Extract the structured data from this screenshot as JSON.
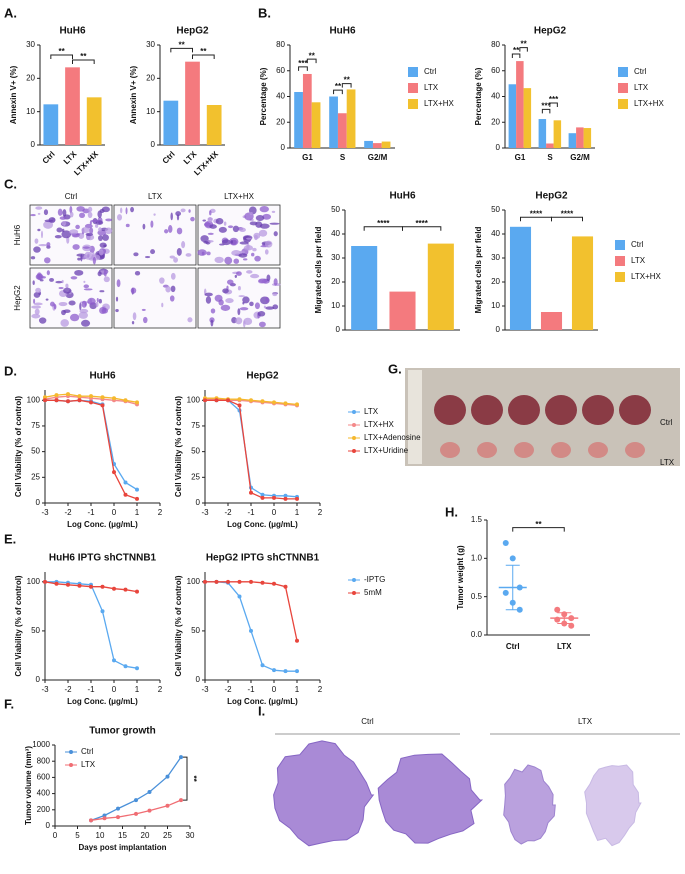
{
  "panel_labels": [
    "A.",
    "B.",
    "C.",
    "D.",
    "E.",
    "F.",
    "G.",
    "H.",
    "I."
  ],
  "images": {
    "C": {
      "columns": [
        "Ctrl",
        "LTX",
        "LTX+HX"
      ],
      "rows": [
        "HuH6",
        "HepG2"
      ]
    },
    "G": {
      "rows": [
        "Ctrl",
        "LTX"
      ]
    },
    "I": {
      "groups": [
        "Ctrl",
        "LTX"
      ]
    }
  },
  "chart_data": [
    {
      "type": "bar",
      "title": "HuH6",
      "ylabel": "Annexin V+ (%)",
      "categories": [
        "Ctrl",
        "LTX",
        "LTX+HX"
      ],
      "values": [
        12.2,
        23.3,
        14.3
      ],
      "colors": [
        "#5aa9f0",
        "#f47a7e",
        "#f2c12e"
      ],
      "ylim": [
        0,
        30
      ],
      "yticks": [
        0,
        10,
        20,
        30
      ],
      "annotations": [
        "**",
        "**"
      ]
    },
    {
      "type": "bar",
      "title": "HepG2",
      "ylabel": "Annexin V+ (%)",
      "categories": [
        "Ctrl",
        "LTX",
        "LTX+HX"
      ],
      "values": [
        13.3,
        25,
        12
      ],
      "colors": [
        "#5aa9f0",
        "#f47a7e",
        "#f2c12e"
      ],
      "ylim": [
        0,
        30
      ],
      "yticks": [
        0,
        10,
        20,
        30
      ],
      "annotations": [
        "**",
        "**"
      ]
    },
    {
      "type": "bar",
      "title": "HuH6",
      "ylabel": "Percentage (%)",
      "categories": [
        "G1",
        "S",
        "G2/M"
      ],
      "series": [
        {
          "name": "Ctrl",
          "color": "#5aa9f0",
          "values": [
            43.5,
            40,
            5.5
          ]
        },
        {
          "name": "LTX",
          "color": "#f47a7e",
          "values": [
            57.5,
            27,
            3.8
          ]
        },
        {
          "name": "LTX+HX",
          "color": "#f2c12e",
          "values": [
            35.5,
            45.5,
            5
          ]
        }
      ],
      "ylim": [
        0,
        80
      ],
      "yticks": [
        0,
        20,
        40,
        60,
        80
      ],
      "legend": "right",
      "annotations": [
        "***",
        "**",
        "**",
        "**"
      ]
    },
    {
      "type": "bar",
      "title": "HepG2",
      "ylabel": "Percentage (%)",
      "categories": [
        "G1",
        "S",
        "G2/M"
      ],
      "series": [
        {
          "name": "Ctrl",
          "color": "#5aa9f0",
          "values": [
            49.5,
            22.5,
            11.5
          ]
        },
        {
          "name": "LTX",
          "color": "#f47a7e",
          "values": [
            67.5,
            3.5,
            16
          ]
        },
        {
          "name": "LTX+HX",
          "color": "#f2c12e",
          "values": [
            46.5,
            21.5,
            15.5
          ]
        }
      ],
      "ylim": [
        0,
        80
      ],
      "yticks": [
        0,
        20,
        40,
        60,
        80
      ],
      "legend": "right",
      "annotations": [
        "**",
        "**",
        "***",
        "***"
      ]
    },
    {
      "type": "bar",
      "title": "HuH6",
      "ylabel": "Migrated cells per field",
      "categories": [
        null,
        null,
        null
      ],
      "values": [
        35,
        16,
        36
      ],
      "colors": [
        "#5aa9f0",
        "#f47a7e",
        "#f2c12e"
      ],
      "ylim": [
        0,
        50
      ],
      "yticks": [
        0,
        10,
        20,
        30,
        40,
        50
      ],
      "annotations": [
        "****",
        "****"
      ]
    },
    {
      "type": "bar",
      "title": "HepG2",
      "ylabel": "Migrated cells per field",
      "categories": [
        "Ctrl",
        "LTX",
        "LTX+HX"
      ],
      "values": [
        43,
        7.5,
        39
      ],
      "colors": [
        "#5aa9f0",
        "#f47a7e",
        "#f2c12e"
      ],
      "ylim": [
        0,
        50
      ],
      "yticks": [
        0,
        10,
        20,
        30,
        40,
        50
      ],
      "legend": "right",
      "annotations": [
        "****",
        "****"
      ]
    },
    {
      "type": "line",
      "title": "HuH6",
      "xlabel": "Log Conc. (μg/mL)",
      "ylabel": "Cell Viability (% of control)",
      "x": [
        -3,
        -2.5,
        -2,
        -1.5,
        -1,
        -0.5,
        0,
        0.5,
        1
      ],
      "series": [
        {
          "name": "LTX",
          "color": "#5aa9f0",
          "values": [
            100,
            100,
            99,
            100,
            99,
            96,
            38,
            20,
            13
          ]
        },
        {
          "name": "LTX+HX",
          "color": "#f4898a",
          "values": [
            101,
            103,
            104,
            103,
            102,
            101,
            100,
            99,
            96
          ]
        },
        {
          "name": "LTX+Adenosine",
          "color": "#f5b82e",
          "values": [
            103,
            105,
            106,
            104,
            104,
            103,
            102,
            100,
            98
          ]
        },
        {
          "name": "LTX+Uridine",
          "color": "#e8453c",
          "values": [
            100,
            100,
            99,
            100,
            98,
            95,
            30,
            8,
            4
          ]
        }
      ],
      "xlim": [
        -3,
        2
      ],
      "xticks": [
        -3,
        -2,
        -1,
        0,
        1,
        2
      ],
      "ylim": [
        0,
        110
      ],
      "yticks": [
        0,
        25,
        50,
        75,
        100
      ]
    },
    {
      "type": "line",
      "title": "HepG2",
      "xlabel": "Log Conc. (μg/mL)",
      "ylabel": "Cell Viability (% of control)",
      "x": [
        -3,
        -2.5,
        -2,
        -1.5,
        -1,
        -0.5,
        0,
        0.5,
        1
      ],
      "series": [
        {
          "name": "LTX",
          "color": "#5aa9f0",
          "values": [
            100,
            100,
            100,
            90,
            15,
            8,
            7,
            7,
            6
          ]
        },
        {
          "name": "LTX+HX",
          "color": "#f4898a",
          "values": [
            101,
            101,
            100,
            100,
            99,
            98,
            97,
            96,
            95
          ]
        },
        {
          "name": "LTX+Adenosine",
          "color": "#f5b82e",
          "values": [
            102,
            102,
            101,
            101,
            100,
            99,
            98,
            97,
            96
          ]
        },
        {
          "name": "LTX+Uridine",
          "color": "#e8453c",
          "values": [
            100,
            100,
            100,
            95,
            10,
            5,
            5,
            4,
            4
          ]
        }
      ],
      "xlim": [
        -3,
        2
      ],
      "xticks": [
        -3,
        -2,
        -1,
        0,
        1,
        2
      ],
      "ylim": [
        0,
        110
      ],
      "yticks": [
        0,
        25,
        50,
        75,
        100
      ],
      "legend": "right"
    },
    {
      "type": "line",
      "title": "HuH6 IPTG shCTNNB1",
      "xlabel": "Log Conc. (μg/mL)",
      "ylabel": "Cell Viability (% of control)",
      "x": [
        -3,
        -2.5,
        -2,
        -1.5,
        -1,
        -0.5,
        0,
        0.5,
        1
      ],
      "series": [
        {
          "name": "-IPTG",
          "color": "#5aa9f0",
          "values": [
            100,
            100,
            99,
            98,
            97,
            70,
            20,
            14,
            12
          ]
        },
        {
          "name": "5mM",
          "color": "#e8453c",
          "values": [
            100,
            98,
            97,
            96,
            95,
            95,
            93,
            92,
            90
          ]
        }
      ],
      "xlim": [
        -3,
        2
      ],
      "xticks": [
        -3,
        -2,
        -1,
        0,
        1,
        2
      ],
      "ylim": [
        0,
        110
      ],
      "yticks": [
        0,
        50,
        100
      ]
    },
    {
      "type": "line",
      "title": "HepG2 IPTG shCTNNB1",
      "xlabel": "Log Conc. (μg/mL)",
      "ylabel": "Cell Viability (% of control)",
      "x": [
        -3,
        -2.5,
        -2,
        -1.5,
        -1,
        -0.5,
        0,
        0.5,
        1
      ],
      "series": [
        {
          "name": "-IPTG",
          "color": "#5aa9f0",
          "values": [
            100,
            100,
            99,
            85,
            50,
            15,
            10,
            9,
            9
          ]
        },
        {
          "name": "5mM",
          "color": "#e8453c",
          "values": [
            100,
            100,
            100,
            100,
            100,
            99,
            98,
            95,
            40
          ]
        }
      ],
      "xlim": [
        -3,
        2
      ],
      "xticks": [
        -3,
        -2,
        -1,
        0,
        1,
        2
      ],
      "ylim": [
        0,
        110
      ],
      "yticks": [
        0,
        50,
        100
      ],
      "legend": "right"
    },
    {
      "type": "line",
      "title": "Tumor growth",
      "xlabel": "Days post implantation",
      "ylabel": "Tumor volume (mm³)",
      "x": [
        8,
        11,
        14,
        18,
        21,
        25,
        28
      ],
      "series": [
        {
          "name": "Ctrl",
          "color": "#4a90d9",
          "values": [
            70,
            130,
            215,
            320,
            420,
            610,
            850
          ]
        },
        {
          "name": "LTX",
          "color": "#f06d73",
          "values": [
            70,
            95,
            110,
            150,
            190,
            250,
            320
          ]
        }
      ],
      "xlim": [
        0,
        30
      ],
      "xticks": [
        0,
        5,
        10,
        15,
        20,
        25,
        30
      ],
      "ylim": [
        0,
        1000
      ],
      "yticks": [
        0,
        200,
        400,
        600,
        800,
        1000
      ],
      "legend": "upper left",
      "annotations": [
        "**"
      ]
    },
    {
      "type": "dot",
      "ylabel": "Tumor weight (g)",
      "categories": [
        "Ctrl",
        "LTX"
      ],
      "values": [
        [
          1.2,
          1.0,
          0.62,
          0.55,
          0.42,
          0.33
        ],
        [
          0.33,
          0.27,
          0.22,
          0.2,
          0.15,
          0.12
        ]
      ],
      "means": [
        0.62,
        0.22
      ],
      "errors": [
        0.29,
        0.07
      ],
      "colors": [
        "#5aa9f0",
        "#f47a7e"
      ],
      "ylim": [
        0,
        1.5
      ],
      "yticks": [
        {
          "value": 0,
          "label": "0.0"
        },
        {
          "value": 0.5,
          "label": "0.5"
        },
        {
          "value": 1,
          "label": "1.0"
        },
        {
          "value": 1.5,
          "label": "1.5"
        }
      ],
      "annotations": [
        "**"
      ]
    }
  ]
}
